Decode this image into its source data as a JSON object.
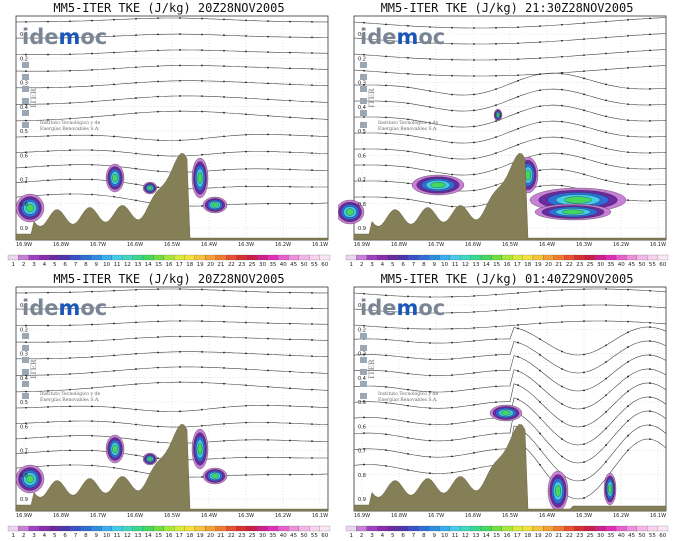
{
  "logo": {
    "part1": "ide",
    "part2": "m",
    "part3": "oc",
    "iter": "ITER",
    "institute_line1": "Instituto Tecnológico y de",
    "institute_line2": "Energías Renovables S.A."
  },
  "colors": {
    "terrain": "#857f57",
    "contour": "#444444",
    "background": "#ffffff"
  },
  "colorbar": {
    "labels": [
      "1",
      "2",
      "3",
      "4",
      "5",
      "6",
      "7",
      "8",
      "9",
      "10",
      "11",
      "12",
      "13",
      "14",
      "15",
      "16",
      "17",
      "18",
      "19",
      "20",
      "21",
      "22",
      "23",
      "25",
      "30",
      "35",
      "40",
      "45",
      "50",
      "55",
      "60"
    ],
    "colors": [
      "#ead6f0",
      "#c880d6",
      "#a040c0",
      "#8a2cb0",
      "#6a2aa0",
      "#4b36b0",
      "#3a50c8",
      "#2f6ed8",
      "#2f8de0",
      "#38aef0",
      "#44cbe8",
      "#3fd8c0",
      "#38d890",
      "#44d860",
      "#6fe040",
      "#a6e83a",
      "#d8ec3a",
      "#f4e23c",
      "#f7c43a",
      "#f5a035",
      "#f07a30",
      "#e85030",
      "#d83030",
      "#c81e48",
      "#d0208c",
      "#e030b8",
      "#e860cc",
      "#f090dc",
      "#f4b6e6",
      "#f8d2ee",
      "#fce6f6"
    ]
  },
  "chart_data": [
    {
      "type": "heatmap",
      "title": "MM5-ITER TKE (J/kg) 20Z28NOV2005",
      "xticks": [
        "16.9W",
        "16.8W",
        "16.7W",
        "16.6W",
        "16.5W",
        "16.4W",
        "16.3W",
        "16.2W",
        "16.1W"
      ],
      "yticks": [
        "0.1",
        "0.2",
        "0.3",
        "0.4",
        "0.5",
        "0.6",
        "0.7",
        "0.8",
        "0.9"
      ],
      "variable": "TKE",
      "units": "J/kg"
    },
    {
      "type": "heatmap",
      "title": "MM5-ITER TKE (J/kg) 21:30Z28NOV2005",
      "xticks": [
        "16.9W",
        "16.8W",
        "16.7W",
        "16.6W",
        "16.5W",
        "16.4W",
        "16.3W",
        "16.2W",
        "16.1W"
      ],
      "yticks": [
        "0.1",
        "0.2",
        "0.3",
        "0.4",
        "0.5",
        "0.6",
        "0.7",
        "0.8",
        "0.9"
      ],
      "variable": "TKE",
      "units": "J/kg"
    },
    {
      "type": "heatmap",
      "title": "MM5-ITER TKE (J/kg) 20Z28NOV2005",
      "xticks": [
        "16.9W",
        "16.8W",
        "16.7W",
        "16.6W",
        "16.5W",
        "16.4W",
        "16.3W",
        "16.2W",
        "16.1W"
      ],
      "yticks": [
        "0.1",
        "0.2",
        "0.3",
        "0.4",
        "0.5",
        "0.6",
        "0.7",
        "0.8",
        "0.9"
      ],
      "variable": "TKE",
      "units": "J/kg"
    },
    {
      "type": "heatmap",
      "title": "MM5-ITER TKE (J/kg) 01:40Z29NOV2005",
      "xticks": [
        "16.9W",
        "16.8W",
        "16.7W",
        "16.6W",
        "16.5W",
        "16.4W",
        "16.3W",
        "16.2W",
        "16.1W"
      ],
      "yticks": [
        "0.1",
        "0.2",
        "0.3",
        "0.4",
        "0.5",
        "0.6",
        "0.7",
        "0.8",
        "0.9"
      ],
      "variable": "TKE",
      "units": "J/kg"
    }
  ]
}
